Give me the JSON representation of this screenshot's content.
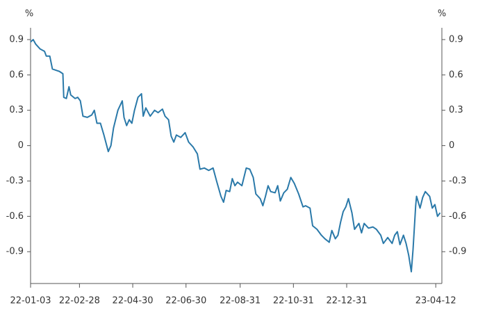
{
  "chart_data": {
    "type": "line",
    "ylabel": "%",
    "y2label": "%",
    "color": "#2a79a9",
    "x": [
      "22-01-03",
      "22-01-06",
      "22-01-09",
      "22-01-14",
      "22-01-19",
      "22-01-21",
      "22-01-25",
      "22-01-28",
      "22-02-01",
      "22-02-05",
      "22-02-09",
      "22-02-10",
      "22-02-13",
      "22-02-16",
      "22-02-18",
      "22-02-23",
      "22-02-26",
      "22-03-01",
      "22-03-04",
      "22-03-09",
      "22-03-14",
      "22-03-17",
      "22-03-20",
      "22-03-24",
      "22-03-28",
      "22-04-02",
      "22-04-05",
      "22-04-08",
      "22-04-13",
      "22-04-18",
      "22-04-20",
      "22-04-23",
      "22-04-26",
      "22-04-29",
      "22-05-02",
      "22-05-06",
      "22-05-10",
      "22-05-12",
      "22-05-15",
      "22-05-20",
      "22-05-25",
      "22-05-29",
      "22-06-03",
      "22-06-06",
      "22-06-10",
      "22-06-13",
      "22-06-16",
      "22-06-19",
      "22-06-24",
      "22-06-29",
      "22-07-03",
      "22-07-08",
      "22-07-13",
      "22-07-16",
      "22-07-21",
      "22-07-26",
      "22-07-31",
      "22-08-04",
      "22-08-09",
      "22-08-12",
      "22-08-15",
      "22-08-19",
      "22-08-22",
      "22-08-25",
      "22-08-28",
      "22-09-02",
      "22-09-07",
      "22-09-11",
      "22-09-15",
      "22-09-18",
      "22-09-23",
      "22-09-26",
      "22-09-29",
      "22-10-02",
      "22-10-05",
      "22-10-10",
      "22-10-13",
      "22-10-16",
      "22-10-20",
      "22-10-24",
      "22-10-28",
      "22-11-01",
      "22-11-06",
      "22-11-11",
      "22-11-14",
      "22-11-19",
      "22-11-22",
      "22-11-27",
      "22-12-02",
      "22-12-06",
      "22-12-11",
      "22-12-14",
      "22-12-18",
      "22-12-21",
      "22-12-24",
      "22-12-27",
      "22-12-30",
      "23-01-02",
      "23-01-06",
      "23-01-09",
      "23-01-14",
      "23-01-17",
      "23-01-20",
      "23-01-25",
      "23-01-30",
      "23-02-03",
      "23-02-08",
      "23-02-11",
      "23-02-16",
      "23-02-21",
      "23-02-24",
      "23-02-27",
      "23-03-02",
      "23-03-06",
      "23-03-09",
      "23-03-12",
      "23-03-15",
      "23-03-17",
      "23-03-20",
      "23-03-21",
      "23-03-25",
      "23-03-28",
      "23-03-31",
      "23-04-05",
      "23-04-08",
      "23-04-11",
      "23-04-14",
      "23-04-17"
    ],
    "values": [
      0.88,
      0.9,
      0.86,
      0.82,
      0.8,
      0.76,
      0.76,
      0.65,
      0.64,
      0.63,
      0.61,
      0.41,
      0.4,
      0.5,
      0.43,
      0.4,
      0.41,
      0.38,
      0.25,
      0.24,
      0.26,
      0.3,
      0.19,
      0.19,
      0.09,
      -0.05,
      0.0,
      0.15,
      0.3,
      0.38,
      0.24,
      0.17,
      0.22,
      0.19,
      0.3,
      0.41,
      0.44,
      0.25,
      0.32,
      0.25,
      0.3,
      0.28,
      0.31,
      0.25,
      0.22,
      0.08,
      0.03,
      0.09,
      0.07,
      0.11,
      0.03,
      -0.01,
      -0.07,
      -0.2,
      -0.19,
      -0.21,
      -0.19,
      -0.3,
      -0.43,
      -0.48,
      -0.38,
      -0.39,
      -0.28,
      -0.34,
      -0.31,
      -0.34,
      -0.19,
      -0.2,
      -0.27,
      -0.41,
      -0.45,
      -0.51,
      -0.43,
      -0.34,
      -0.39,
      -0.4,
      -0.34,
      -0.47,
      -0.4,
      -0.37,
      -0.27,
      -0.32,
      -0.41,
      -0.52,
      -0.51,
      -0.53,
      -0.68,
      -0.71,
      -0.76,
      -0.79,
      -0.82,
      -0.72,
      -0.79,
      -0.76,
      -0.65,
      -0.56,
      -0.52,
      -0.45,
      -0.57,
      -0.71,
      -0.66,
      -0.74,
      -0.66,
      -0.7,
      -0.69,
      -0.71,
      -0.76,
      -0.83,
      -0.78,
      -0.83,
      -0.76,
      -0.73,
      -0.84,
      -0.76,
      -0.83,
      -0.93,
      -1.07,
      -0.88,
      -0.51,
      -0.43,
      -0.53,
      -0.44,
      -0.39,
      -0.43,
      -0.53,
      -0.5,
      -0.6,
      -0.57
    ],
    "xlim": [
      "22-01-03",
      "23-04-19"
    ],
    "xticks": [
      "22-01-03",
      "22-02-28",
      "22-04-30",
      "22-06-30",
      "22-08-31",
      "22-10-31",
      "22-12-31",
      "23-04-12"
    ],
    "ylim": [
      -1.17,
      1.0
    ],
    "yticks": [
      0.9,
      0.6,
      0.3,
      0,
      -0.3,
      -0.6,
      -0.9
    ],
    "y2lim": [
      -1.17,
      1.0
    ],
    "y2ticks": [
      0.9,
      0.6,
      0.3,
      0,
      -0.3,
      -0.6,
      -0.9
    ]
  }
}
